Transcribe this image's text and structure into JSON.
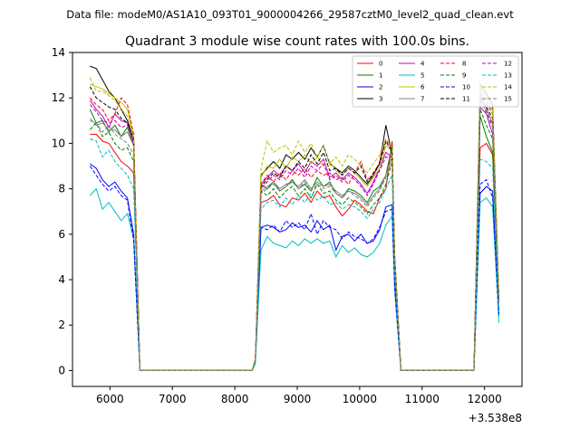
{
  "chart_data": {
    "type": "line",
    "suptitle": "Data file: modeM0/AS1A10_093T01_9000004266_29587cztM0_level2_quad_clean.evt",
    "title": "Quadrant 3 module wise count rates with 100.0s bins.",
    "xlabel": "",
    "ylabel": "",
    "x_offset_label": "+3.538e8",
    "xlim": [
      5400,
      12600
    ],
    "ylim": [
      -0.7,
      14
    ],
    "x_ticks": [
      6000,
      7000,
      8000,
      9000,
      10000,
      11000,
      12000
    ],
    "y_ticks": [
      0,
      2,
      4,
      6,
      8,
      10,
      12,
      14
    ],
    "legend_placement": "top-right",
    "grid": false,
    "x": [
      5680,
      5780,
      5880,
      5980,
      6080,
      6180,
      6280,
      6380,
      6480,
      6580,
      6680,
      6780,
      6880,
      6980,
      7080,
      7180,
      7280,
      7380,
      7480,
      7580,
      7680,
      7780,
      7880,
      7980,
      8080,
      8180,
      8280,
      8330,
      8420,
      8520,
      8620,
      8720,
      8820,
      8920,
      9020,
      9120,
      9220,
      9320,
      9420,
      9520,
      9620,
      9720,
      9820,
      9920,
      10020,
      10120,
      10220,
      10320,
      10420,
      10520,
      10560,
      10660,
      10760,
      10860,
      10960,
      11060,
      11160,
      11260,
      11360,
      11460,
      11560,
      11660,
      11760,
      11830,
      11930,
      12030,
      12130,
      12230
    ],
    "series": [
      {
        "name": "0",
        "color": "#ff0000",
        "dash": false,
        "values": [
          10.4,
          10.4,
          10.1,
          10.0,
          9.6,
          9.2,
          9.0,
          8.7,
          0.0,
          0.0,
          0.0,
          0.0,
          0.0,
          0.0,
          0.0,
          0.0,
          0.0,
          0.0,
          0.0,
          0.0,
          0.0,
          0.0,
          0.0,
          0.0,
          0.0,
          0.0,
          0.0,
          0.5,
          7.4,
          7.5,
          7.7,
          7.3,
          7.2,
          7.6,
          7.5,
          7.8,
          7.4,
          7.9,
          7.6,
          7.7,
          7.2,
          6.8,
          7.1,
          7.5,
          7.3,
          7.0,
          6.9,
          7.6,
          8.0,
          10.1,
          4.6,
          0.0,
          0.0,
          0.0,
          0.0,
          0.0,
          0.0,
          0.0,
          0.0,
          0.0,
          0.0,
          0.0,
          0.0,
          0.0,
          9.8,
          10.0,
          9.5,
          3.2
        ]
      },
      {
        "name": "1",
        "color": "#008000",
        "dash": false,
        "values": [
          11.5,
          10.9,
          11.0,
          10.5,
          10.8,
          10.3,
          10.7,
          9.9,
          0.0,
          0.0,
          0.0,
          0.0,
          0.0,
          0.0,
          0.0,
          0.0,
          0.0,
          0.0,
          0.0,
          0.0,
          0.0,
          0.0,
          0.0,
          0.0,
          0.0,
          0.0,
          0.0,
          0.5,
          8.2,
          8.0,
          8.3,
          7.9,
          8.1,
          8.4,
          8.0,
          8.2,
          7.9,
          8.5,
          8.1,
          8.3,
          7.8,
          7.6,
          8.0,
          7.9,
          7.7,
          7.4,
          7.9,
          8.1,
          8.6,
          9.9,
          4.8,
          0.0,
          0.0,
          0.0,
          0.0,
          0.0,
          0.0,
          0.0,
          0.0,
          0.0,
          0.0,
          0.0,
          0.0,
          0.0,
          11.2,
          10.3,
          9.6,
          3.0
        ]
      },
      {
        "name": "2",
        "color": "#0000ff",
        "dash": false,
        "values": [
          9.1,
          8.9,
          8.4,
          8.1,
          8.3,
          7.9,
          7.6,
          6.0,
          0.0,
          0.0,
          0.0,
          0.0,
          0.0,
          0.0,
          0.0,
          0.0,
          0.0,
          0.0,
          0.0,
          0.0,
          0.0,
          0.0,
          0.0,
          0.0,
          0.0,
          0.0,
          0.0,
          0.4,
          6.3,
          6.4,
          6.3,
          6.1,
          6.2,
          6.5,
          6.3,
          6.4,
          6.1,
          6.6,
          6.2,
          6.4,
          5.3,
          5.9,
          6.0,
          5.7,
          6.0,
          5.6,
          5.7,
          6.2,
          7.2,
          7.3,
          3.8,
          0.0,
          0.0,
          0.0,
          0.0,
          0.0,
          0.0,
          0.0,
          0.0,
          0.0,
          0.0,
          0.0,
          0.0,
          0.0,
          7.8,
          8.1,
          7.9,
          2.4
        ]
      },
      {
        "name": "3",
        "color": "#000000",
        "dash": false,
        "values": [
          13.4,
          13.3,
          12.8,
          12.3,
          12.0,
          11.5,
          11.0,
          10.2,
          0.0,
          0.0,
          0.0,
          0.0,
          0.0,
          0.0,
          0.0,
          0.0,
          0.0,
          0.0,
          0.0,
          0.0,
          0.0,
          0.0,
          0.0,
          0.0,
          0.0,
          0.0,
          0.0,
          0.5,
          8.6,
          8.9,
          9.2,
          8.9,
          9.5,
          9.3,
          9.6,
          9.3,
          9.8,
          9.4,
          9.9,
          9.1,
          8.9,
          8.7,
          9.0,
          8.8,
          8.5,
          8.2,
          8.6,
          9.1,
          10.8,
          9.5,
          5.1,
          0.0,
          0.0,
          0.0,
          0.0,
          0.0,
          0.0,
          0.0,
          0.0,
          0.0,
          0.0,
          0.0,
          0.0,
          0.0,
          12.6,
          12.2,
          11.7,
          3.2
        ]
      },
      {
        "name": "4",
        "color": "#bf00bf",
        "dash": false,
        "values": [
          11.9,
          11.5,
          11.2,
          10.7,
          11.3,
          11.0,
          10.9,
          10.0,
          0.0,
          0.0,
          0.0,
          0.0,
          0.0,
          0.0,
          0.0,
          0.0,
          0.0,
          0.0,
          0.0,
          0.0,
          0.0,
          0.0,
          0.0,
          0.0,
          0.0,
          0.0,
          0.0,
          0.5,
          8.2,
          8.5,
          8.8,
          8.6,
          9.0,
          8.8,
          9.1,
          8.7,
          9.2,
          9.0,
          9.3,
          8.5,
          8.7,
          8.4,
          8.7,
          8.5,
          8.2,
          7.8,
          8.3,
          8.9,
          9.6,
          9.4,
          4.9,
          0.0,
          0.0,
          0.0,
          0.0,
          0.0,
          0.0,
          0.0,
          0.0,
          0.0,
          0.0,
          0.0,
          0.0,
          0.0,
          11.6,
          11.3,
          10.4,
          3.1
        ]
      },
      {
        "name": "5",
        "color": "#00bfbf",
        "dash": false,
        "values": [
          7.7,
          8.0,
          7.1,
          7.4,
          7.0,
          6.6,
          6.9,
          5.8,
          0.0,
          0.0,
          0.0,
          0.0,
          0.0,
          0.0,
          0.0,
          0.0,
          0.0,
          0.0,
          0.0,
          0.0,
          0.0,
          0.0,
          0.0,
          0.0,
          0.0,
          0.0,
          0.0,
          0.3,
          5.3,
          5.9,
          5.6,
          5.5,
          5.4,
          5.7,
          5.5,
          5.8,
          5.6,
          5.8,
          5.6,
          5.7,
          5.0,
          5.5,
          5.2,
          5.4,
          5.1,
          5.0,
          5.2,
          5.6,
          6.4,
          6.8,
          3.5,
          0.0,
          0.0,
          0.0,
          0.0,
          0.0,
          0.0,
          0.0,
          0.0,
          0.0,
          0.0,
          0.0,
          0.0,
          0.0,
          7.4,
          7.6,
          7.2,
          2.1
        ]
      },
      {
        "name": "6",
        "color": "#bfbf00",
        "dash": false,
        "values": [
          12.6,
          12.5,
          12.4,
          12.2,
          12.0,
          11.8,
          11.5,
          10.3,
          0.0,
          0.0,
          0.0,
          0.0,
          0.0,
          0.0,
          0.0,
          0.0,
          0.0,
          0.0,
          0.0,
          0.0,
          0.0,
          0.0,
          0.0,
          0.0,
          0.0,
          0.0,
          0.0,
          0.5,
          8.5,
          9.0,
          8.9,
          9.3,
          8.9,
          9.4,
          9.2,
          9.5,
          9.1,
          9.4,
          9.0,
          9.2,
          8.8,
          8.6,
          8.9,
          8.7,
          8.4,
          8.1,
          8.5,
          8.9,
          9.9,
          9.7,
          5.0,
          0.0,
          0.0,
          0.0,
          0.0,
          0.0,
          0.0,
          0.0,
          0.0,
          0.0,
          0.0,
          0.0,
          0.0,
          0.0,
          12.5,
          12.0,
          11.5,
          3.2
        ]
      },
      {
        "name": "7",
        "color": "#808080",
        "dash": false,
        "values": [
          11.1,
          10.8,
          10.9,
          10.6,
          10.6,
          10.3,
          10.5,
          9.9,
          0.0,
          0.0,
          0.0,
          0.0,
          0.0,
          0.0,
          0.0,
          0.0,
          0.0,
          0.0,
          0.0,
          0.0,
          0.0,
          0.0,
          0.0,
          0.0,
          0.0,
          0.0,
          0.0,
          0.5,
          7.9,
          8.1,
          8.3,
          8.0,
          8.2,
          8.3,
          8.1,
          8.4,
          8.0,
          8.3,
          8.1,
          8.2,
          7.9,
          7.7,
          7.9,
          7.8,
          7.6,
          7.3,
          7.7,
          8.0,
          8.6,
          9.4,
          4.8,
          0.0,
          0.0,
          0.0,
          0.0,
          0.0,
          0.0,
          0.0,
          0.0,
          0.0,
          0.0,
          0.0,
          0.0,
          0.0,
          12.2,
          11.5,
          10.9,
          3.1
        ]
      },
      {
        "name": "8",
        "color": "#ff0000",
        "dash": true,
        "values": [
          12.0,
          11.7,
          11.5,
          11.0,
          11.3,
          12.0,
          11.7,
          10.4,
          0.0,
          0.0,
          0.0,
          0.0,
          0.0,
          0.0,
          0.0,
          0.0,
          0.0,
          0.0,
          0.0,
          0.0,
          0.0,
          0.0,
          0.0,
          0.0,
          0.0,
          0.0,
          0.0,
          0.5,
          8.2,
          8.6,
          8.3,
          8.7,
          8.4,
          8.8,
          8.6,
          8.9,
          8.5,
          8.8,
          8.6,
          8.7,
          8.4,
          8.5,
          8.2,
          8.7,
          9.2,
          8.4,
          8.6,
          9.2,
          10.2,
          9.7,
          5.0,
          0.0,
          0.0,
          0.0,
          0.0,
          0.0,
          0.0,
          0.0,
          0.0,
          0.0,
          0.0,
          0.0,
          0.0,
          0.0,
          12.3,
          11.8,
          11.3,
          3.2
        ]
      },
      {
        "name": "9",
        "color": "#008000",
        "dash": true,
        "values": [
          10.6,
          10.9,
          10.3,
          10.5,
          10.0,
          9.7,
          9.8,
          9.2,
          0.0,
          0.0,
          0.0,
          0.0,
          0.0,
          0.0,
          0.0,
          0.0,
          0.0,
          0.0,
          0.0,
          0.0,
          0.0,
          0.0,
          0.0,
          0.0,
          0.0,
          0.0,
          0.0,
          0.4,
          7.9,
          7.7,
          8.0,
          7.6,
          7.9,
          8.1,
          7.7,
          8.0,
          7.6,
          8.2,
          7.8,
          7.9,
          7.5,
          7.3,
          7.6,
          7.4,
          7.2,
          6.9,
          7.3,
          7.6,
          8.2,
          9.2,
          4.6,
          0.0,
          0.0,
          0.0,
          0.0,
          0.0,
          0.0,
          0.0,
          0.0,
          0.0,
          0.0,
          0.0,
          0.0,
          0.0,
          11.5,
          10.8,
          10.2,
          3.0
        ]
      },
      {
        "name": "10",
        "color": "#0000ff",
        "dash": true,
        "values": [
          9.0,
          8.6,
          8.2,
          7.9,
          8.1,
          7.7,
          7.5,
          5.7,
          0.0,
          0.0,
          0.0,
          0.0,
          0.0,
          0.0,
          0.0,
          0.0,
          0.0,
          0.0,
          0.0,
          0.0,
          0.0,
          0.0,
          0.0,
          0.0,
          0.0,
          0.0,
          0.0,
          0.4,
          6.3,
          6.2,
          6.4,
          6.1,
          6.6,
          6.3,
          6.5,
          6.2,
          6.9,
          6.0,
          6.6,
          6.3,
          6.2,
          5.8,
          6.1,
          5.9,
          5.8,
          5.6,
          5.8,
          6.3,
          7.0,
          7.1,
          3.7,
          0.0,
          0.0,
          0.0,
          0.0,
          0.0,
          0.0,
          0.0,
          0.0,
          0.0,
          0.0,
          0.0,
          0.0,
          0.0,
          8.2,
          8.4,
          7.6,
          2.5
        ]
      },
      {
        "name": "11",
        "color": "#000000",
        "dash": true,
        "values": [
          12.5,
          12.0,
          11.8,
          11.6,
          11.5,
          11.1,
          10.9,
          10.1,
          0.0,
          0.0,
          0.0,
          0.0,
          0.0,
          0.0,
          0.0,
          0.0,
          0.0,
          0.0,
          0.0,
          0.0,
          0.0,
          0.0,
          0.0,
          0.0,
          0.0,
          0.0,
          0.0,
          0.5,
          8.1,
          8.4,
          8.7,
          8.5,
          9.0,
          8.8,
          9.2,
          8.9,
          9.5,
          9.1,
          9.6,
          8.8,
          8.9,
          8.6,
          8.9,
          8.7,
          9.0,
          8.3,
          8.7,
          9.1,
          10.1,
          9.6,
          5.0,
          0.0,
          0.0,
          0.0,
          0.0,
          0.0,
          0.0,
          0.0,
          0.0,
          0.0,
          0.0,
          0.0,
          0.0,
          0.0,
          12.0,
          11.6,
          11.1,
          3.1
        ]
      },
      {
        "name": "12",
        "color": "#bf00bf",
        "dash": true,
        "values": [
          11.7,
          11.4,
          11.0,
          10.9,
          11.0,
          10.7,
          10.8,
          10.1,
          0.0,
          0.0,
          0.0,
          0.0,
          0.0,
          0.0,
          0.0,
          0.0,
          0.0,
          0.0,
          0.0,
          0.0,
          0.0,
          0.0,
          0.0,
          0.0,
          0.0,
          0.0,
          0.0,
          0.5,
          8.0,
          8.3,
          8.6,
          8.4,
          8.8,
          8.6,
          8.9,
          8.5,
          9.0,
          8.8,
          9.1,
          8.4,
          8.6,
          8.3,
          8.6,
          8.4,
          8.1,
          7.7,
          8.2,
          8.8,
          9.4,
          9.4,
          4.9,
          0.0,
          0.0,
          0.0,
          0.0,
          0.0,
          0.0,
          0.0,
          0.0,
          0.0,
          0.0,
          0.0,
          0.0,
          0.0,
          11.9,
          11.4,
          10.8,
          3.0
        ]
      },
      {
        "name": "13",
        "color": "#00bfbf",
        "dash": true,
        "values": [
          10.2,
          10.1,
          9.4,
          9.7,
          9.2,
          8.9,
          8.6,
          8.0,
          0.0,
          0.0,
          0.0,
          0.0,
          0.0,
          0.0,
          0.0,
          0.0,
          0.0,
          0.0,
          0.0,
          0.0,
          0.0,
          0.0,
          0.0,
          0.0,
          0.0,
          0.0,
          0.0,
          0.4,
          7.1,
          7.4,
          7.5,
          7.2,
          7.6,
          7.3,
          7.7,
          7.4,
          7.8,
          7.5,
          7.7,
          7.3,
          7.4,
          7.1,
          7.3,
          7.2,
          7.0,
          6.7,
          7.1,
          7.4,
          8.0,
          8.6,
          4.4,
          0.0,
          0.0,
          0.0,
          0.0,
          0.0,
          0.0,
          0.0,
          0.0,
          0.0,
          0.0,
          0.0,
          0.0,
          0.0,
          9.3,
          9.2,
          8.9,
          2.7
        ]
      },
      {
        "name": "14",
        "color": "#bfbf00",
        "dash": true,
        "values": [
          12.9,
          12.3,
          12.3,
          12.1,
          11.9,
          11.5,
          11.2,
          10.2,
          0.0,
          0.0,
          0.0,
          0.0,
          0.0,
          0.0,
          0.0,
          0.0,
          0.0,
          0.0,
          0.0,
          0.0,
          0.0,
          0.0,
          0.0,
          0.0,
          0.0,
          0.0,
          0.0,
          0.5,
          8.9,
          10.1,
          9.6,
          9.8,
          9.9,
          9.5,
          10.1,
          9.6,
          10.0,
          9.4,
          9.9,
          9.1,
          9.4,
          9.0,
          9.5,
          9.3,
          9.0,
          8.7,
          9.1,
          9.5,
          10.2,
          9.8,
          5.1,
          0.0,
          0.0,
          0.0,
          0.0,
          0.0,
          0.0,
          0.0,
          0.0,
          0.0,
          0.0,
          0.0,
          0.0,
          0.0,
          12.4,
          12.1,
          11.4,
          3.2
        ]
      },
      {
        "name": "15",
        "color": "#808080",
        "dash": true,
        "values": [
          11.0,
          10.9,
          10.5,
          10.8,
          10.4,
          10.2,
          10.0,
          9.5,
          0.0,
          0.0,
          0.0,
          0.0,
          0.0,
          0.0,
          0.0,
          0.0,
          0.0,
          0.0,
          0.0,
          0.0,
          0.0,
          0.0,
          0.0,
          0.0,
          0.0,
          0.0,
          0.0,
          0.5,
          7.8,
          8.0,
          8.2,
          7.9,
          8.1,
          8.3,
          8.0,
          8.3,
          7.9,
          8.2,
          8.0,
          8.1,
          7.8,
          7.6,
          7.9,
          7.7,
          7.5,
          7.2,
          7.6,
          7.9,
          8.5,
          9.2,
          4.7,
          0.0,
          0.0,
          0.0,
          0.0,
          0.0,
          0.0,
          0.0,
          0.0,
          0.0,
          0.0,
          0.0,
          0.0,
          0.0,
          12.1,
          11.3,
          10.7,
          3.0
        ]
      }
    ]
  }
}
